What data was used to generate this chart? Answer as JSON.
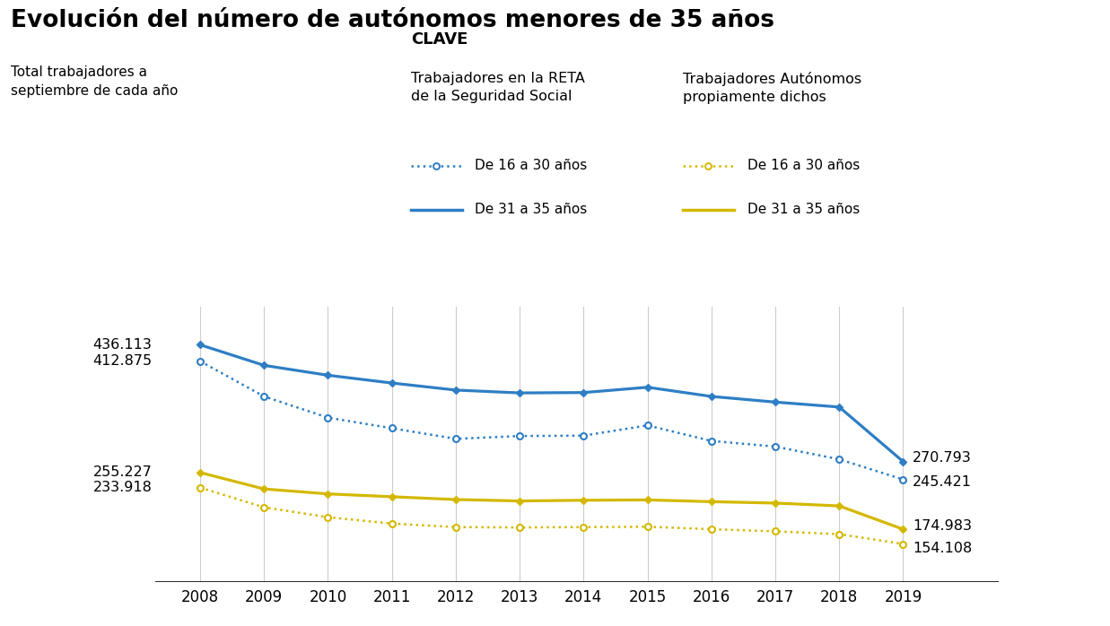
{
  "title": "Evolución del número de autónomos menores de 35 años",
  "subtitle_line1": "Total trabajadores a",
  "subtitle_line2": "septiembre de cada año",
  "years": [
    2008,
    2009,
    2010,
    2011,
    2012,
    2013,
    2014,
    2015,
    2016,
    2017,
    2018,
    2019
  ],
  "reta_31_35": [
    436113,
    407000,
    393000,
    382000,
    372000,
    368000,
    368500,
    376000,
    363000,
    355000,
    348000,
    270793
  ],
  "reta_16_30": [
    412875,
    363000,
    333000,
    318000,
    303000,
    307000,
    307500,
    322000,
    300000,
    292000,
    274000,
    245421
  ],
  "aut_31_35": [
    255227,
    232000,
    225000,
    221000,
    217000,
    215000,
    216000,
    216500,
    214000,
    212000,
    208000,
    174983
  ],
  "aut_16_30": [
    233918,
    206000,
    192000,
    183000,
    178000,
    177500,
    178000,
    178500,
    175000,
    172000,
    168000,
    154108
  ],
  "color_blue": "#2e7ec4",
  "color_yellow": "#d4b800",
  "ylim_min": 100000,
  "ylim_max": 490000,
  "xlim_left": 2007.3,
  "xlim_right": 2020.5,
  "clave_title": "CLAVE",
  "reta_header": "Trabajadores en la RETA\nde la Seguridad Social",
  "aut_header": "Trabajadores Autónomos\npropiamente dichos",
  "label_16_30": "De 16 a 30 años",
  "label_31_35": "De 31 a 35 años",
  "start_reta_31_35": "436.113",
  "start_reta_16_30": "412.875",
  "start_aut_31_35": "255.227",
  "start_aut_16_30": "233.918",
  "end_reta_31_35": "270.793",
  "end_reta_16_30": "245.421",
  "end_aut_31_35": "174.983",
  "end_aut_16_30": "154.108"
}
